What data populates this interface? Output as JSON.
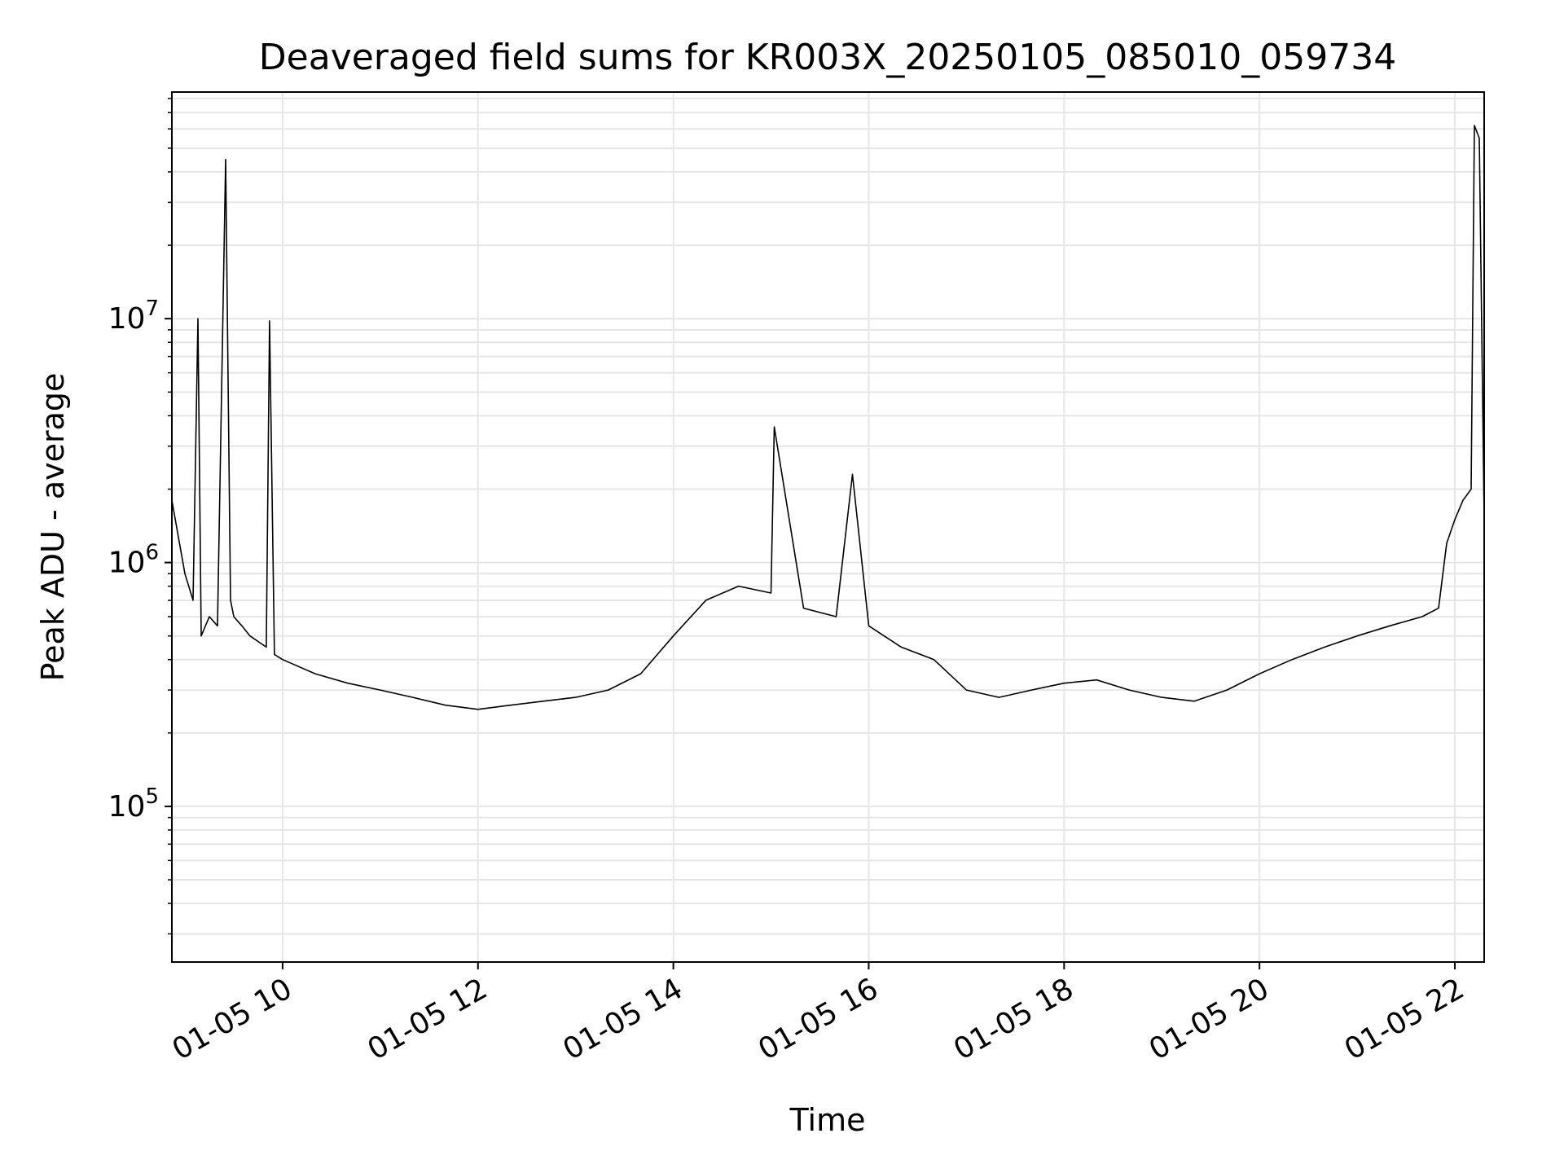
{
  "chart_data": {
    "type": "line",
    "title": "Deaveraged field sums for KR003X_20250105_085010_059734",
    "xlabel": "Time",
    "ylabel": "Peak ADU - average",
    "yscale": "log",
    "xlim": [
      "2025-01-05 08:52",
      "2025-01-05 22:18"
    ],
    "ylim": [
      23000,
      85000000
    ],
    "grid": true,
    "line_color": "#000000",
    "grid_color": "#e6e6e6",
    "x_ticks": [
      {
        "value": "2025-01-05 10:00",
        "label": "01-05 10"
      },
      {
        "value": "2025-01-05 12:00",
        "label": "01-05 12"
      },
      {
        "value": "2025-01-05 14:00",
        "label": "01-05 14"
      },
      {
        "value": "2025-01-05 16:00",
        "label": "01-05 16"
      },
      {
        "value": "2025-01-05 18:00",
        "label": "01-05 18"
      },
      {
        "value": "2025-01-05 20:00",
        "label": "01-05 20"
      },
      {
        "value": "2025-01-05 22:00",
        "label": "01-05 22"
      }
    ],
    "y_ticks": [
      {
        "value": 100000,
        "base": "10",
        "exp": "5"
      },
      {
        "value": 1000000,
        "base": "10",
        "exp": "6"
      },
      {
        "value": 10000000,
        "base": "10",
        "exp": "7"
      }
    ],
    "series": [
      {
        "x": [
          "2025-01-05 08:52",
          "2025-01-05 09:00",
          "2025-01-05 09:05",
          "2025-01-05 09:08",
          "2025-01-05 09:10",
          "2025-01-05 09:15",
          "2025-01-05 09:20",
          "2025-01-05 09:25",
          "2025-01-05 09:28",
          "2025-01-05 09:30",
          "2025-01-05 09:35",
          "2025-01-05 09:40",
          "2025-01-05 09:50",
          "2025-01-05 09:52",
          "2025-01-05 09:55",
          "2025-01-05 10:00",
          "2025-01-05 10:20",
          "2025-01-05 10:40",
          "2025-01-05 11:00",
          "2025-01-05 11:20",
          "2025-01-05 11:40",
          "2025-01-05 12:00",
          "2025-01-05 12:20",
          "2025-01-05 12:40",
          "2025-01-05 13:00",
          "2025-01-05 13:20",
          "2025-01-05 13:40",
          "2025-01-05 14:00",
          "2025-01-05 14:20",
          "2025-01-05 14:40",
          "2025-01-05 15:00",
          "2025-01-05 15:02",
          "2025-01-05 15:20",
          "2025-01-05 15:40",
          "2025-01-05 15:50",
          "2025-01-05 16:00",
          "2025-01-05 16:20",
          "2025-01-05 16:40",
          "2025-01-05 17:00",
          "2025-01-05 17:20",
          "2025-01-05 17:40",
          "2025-01-05 18:00",
          "2025-01-05 18:20",
          "2025-01-05 18:40",
          "2025-01-05 19:00",
          "2025-01-05 19:20",
          "2025-01-05 19:40",
          "2025-01-05 20:00",
          "2025-01-05 20:20",
          "2025-01-05 20:40",
          "2025-01-05 21:00",
          "2025-01-05 21:20",
          "2025-01-05 21:40",
          "2025-01-05 21:50",
          "2025-01-05 21:55",
          "2025-01-05 22:00",
          "2025-01-05 22:05",
          "2025-01-05 22:10",
          "2025-01-05 22:12",
          "2025-01-05 22:15",
          "2025-01-05 22:18"
        ],
        "y": [
          1800000,
          900000,
          700000,
          10000000,
          500000,
          600000,
          550000,
          45000000,
          700000,
          600000,
          550000,
          500000,
          450000,
          9800000,
          420000,
          400000,
          350000,
          320000,
          300000,
          280000,
          260000,
          250000,
          260000,
          270000,
          280000,
          300000,
          350000,
          500000,
          700000,
          800000,
          750000,
          3600000,
          650000,
          600000,
          2300000,
          550000,
          450000,
          400000,
          300000,
          280000,
          300000,
          320000,
          330000,
          300000,
          280000,
          270000,
          300000,
          350000,
          400000,
          450000,
          500000,
          550000,
          600000,
          650000,
          1200000,
          1500000,
          1800000,
          2000000,
          62000000,
          55000000,
          1500000
        ]
      }
    ]
  }
}
